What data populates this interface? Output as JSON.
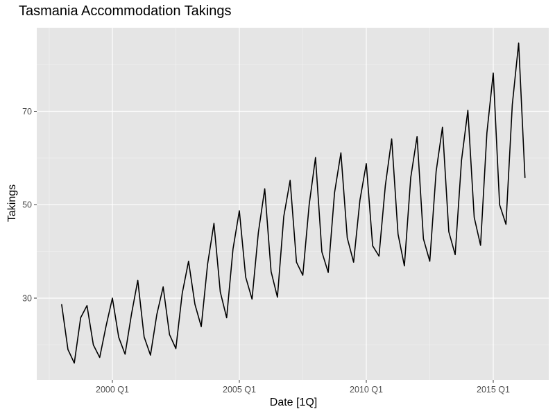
{
  "chart_data": {
    "type": "line",
    "title": "Tasmania Accommodation Takings",
    "xlabel": "Date [1Q]",
    "ylabel": "Takings",
    "x_tick_labels": [
      "2000 Q1",
      "2005 Q1",
      "2010 Q1",
      "2015 Q1"
    ],
    "y_tick_labels": [
      "30",
      "50",
      "70"
    ],
    "ylim": [
      12.5,
      86.5
    ],
    "grid": true,
    "series": [
      {
        "name": "Takings",
        "color": "#000000",
        "x": [
          "1998 Q1",
          "1998 Q2",
          "1998 Q3",
          "1998 Q4",
          "1999 Q1",
          "1999 Q2",
          "1999 Q3",
          "1999 Q4",
          "2000 Q1",
          "2000 Q2",
          "2000 Q3",
          "2000 Q4",
          "2001 Q1",
          "2001 Q2",
          "2001 Q3",
          "2001 Q4",
          "2002 Q1",
          "2002 Q2",
          "2002 Q3",
          "2002 Q4",
          "2003 Q1",
          "2003 Q2",
          "2003 Q3",
          "2003 Q4",
          "2004 Q1",
          "2004 Q2",
          "2004 Q3",
          "2004 Q4",
          "2005 Q1",
          "2005 Q2",
          "2005 Q3",
          "2005 Q4",
          "2006 Q1",
          "2006 Q2",
          "2006 Q3",
          "2006 Q4",
          "2007 Q1",
          "2007 Q2",
          "2007 Q3",
          "2007 Q4",
          "2008 Q1",
          "2008 Q2",
          "2008 Q3",
          "2008 Q4",
          "2009 Q1",
          "2009 Q2",
          "2009 Q3",
          "2009 Q4",
          "2010 Q1",
          "2010 Q2",
          "2010 Q3",
          "2010 Q4",
          "2011 Q1",
          "2011 Q2",
          "2011 Q3",
          "2011 Q4",
          "2012 Q1",
          "2012 Q2",
          "2012 Q3",
          "2012 Q4",
          "2013 Q1",
          "2013 Q2",
          "2013 Q3",
          "2013 Q4",
          "2014 Q1",
          "2014 Q2",
          "2014 Q3",
          "2014 Q4",
          "2015 Q1",
          "2015 Q2",
          "2015 Q3",
          "2015 Q4",
          "2016 Q1",
          "2016 Q2"
        ],
        "values": [
          28.7,
          19.0,
          16.1,
          25.8,
          28.4,
          20.0,
          17.3,
          24.0,
          30.0,
          21.6,
          18.0,
          26.5,
          33.8,
          21.7,
          17.8,
          26.5,
          32.4,
          22.2,
          19.2,
          31.0,
          37.9,
          28.7,
          23.9,
          37.3,
          46.0,
          31.3,
          25.8,
          40.5,
          48.7,
          34.5,
          29.8,
          44.1,
          53.4,
          35.7,
          30.2,
          47.5,
          55.2,
          37.7,
          34.9,
          50.0,
          60.1,
          39.9,
          35.5,
          52.6,
          61.1,
          42.9,
          37.7,
          51.0,
          58.8,
          41.2,
          39.0,
          54.1,
          64.1,
          43.7,
          36.9,
          55.8,
          64.6,
          42.7,
          37.9,
          57.1,
          66.6,
          44.2,
          39.3,
          59.5,
          70.2,
          47.3,
          41.3,
          65.4,
          78.2,
          50.0,
          45.8,
          71.4,
          84.6,
          55.7
        ]
      }
    ]
  }
}
